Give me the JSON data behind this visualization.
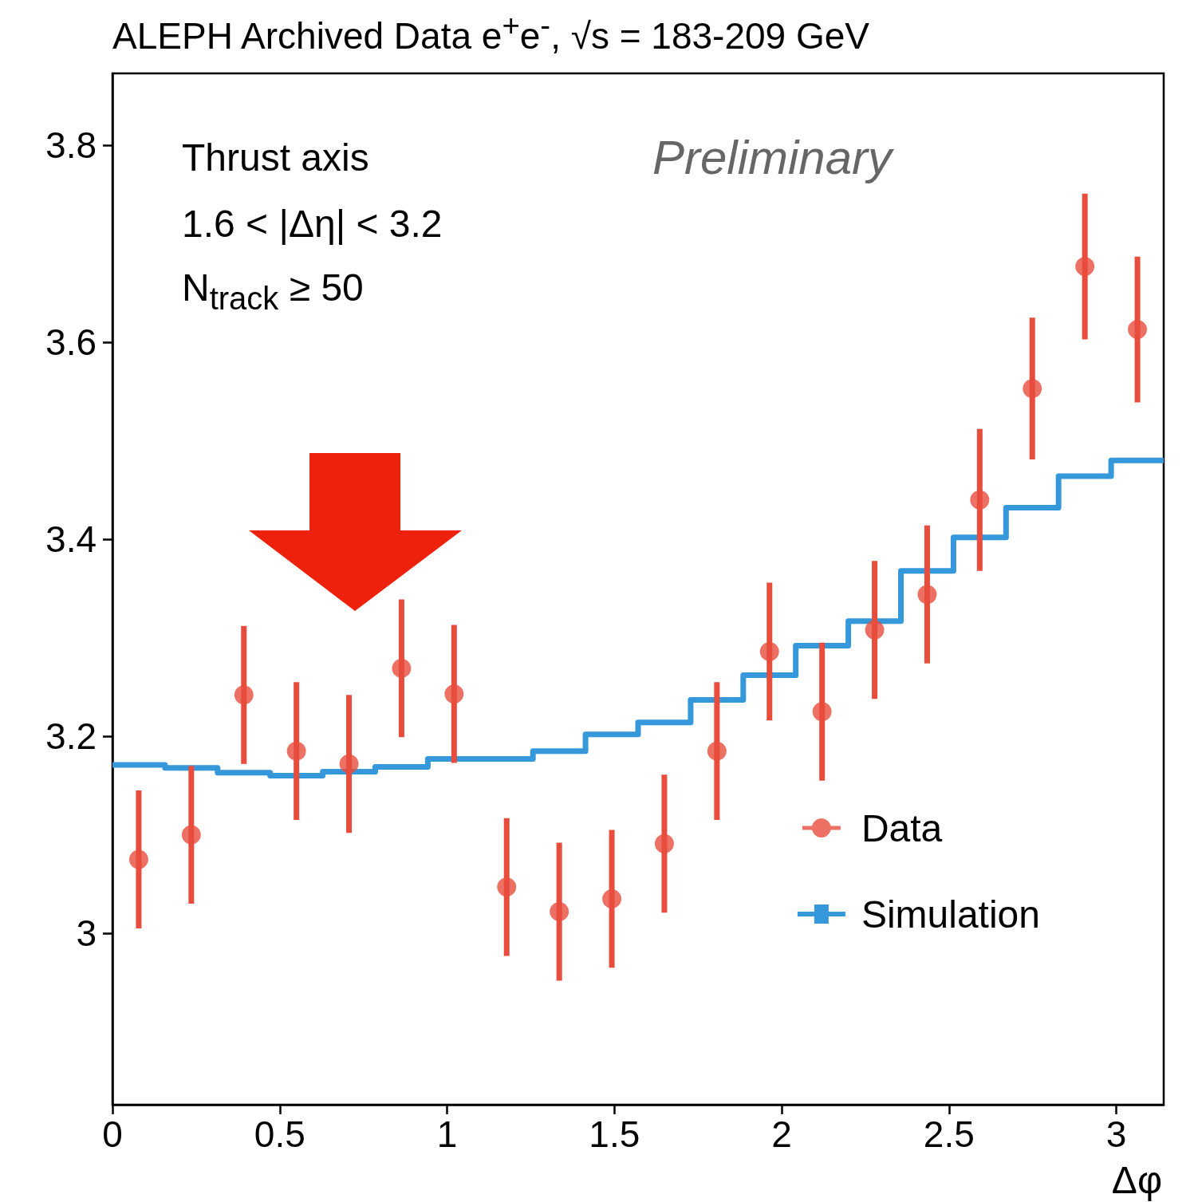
{
  "chart_data": {
    "type": "scatter",
    "title": "ALEPH Archived Data e$^{+}$e$^{-}$, √s = 183-209 GeV",
    "xlabel": "Δφ",
    "annotations": [
      "Thrust axis",
      "1.6 < |Δη| < 3.2",
      "N$_{track}$ ≥ 50",
      "Preliminary"
    ],
    "x": [
      0.0785,
      0.2356,
      0.3927,
      0.5498,
      0.7069,
      0.8639,
      1.021,
      1.1781,
      1.3352,
      1.4923,
      1.6493,
      1.8064,
      1.9635,
      2.1206,
      2.2777,
      2.4347,
      2.5918,
      2.7489,
      2.906,
      3.0631
    ],
    "series": [
      {
        "name": "Data",
        "marker": "circle",
        "color": "#e74c3c",
        "values": [
          3.075,
          3.1,
          3.242,
          3.185,
          3.172,
          3.269,
          3.243,
          3.047,
          3.022,
          3.035,
          3.091,
          3.185,
          3.286,
          3.225,
          3.308,
          3.344,
          3.44,
          3.553,
          3.677,
          3.613
        ],
        "errors": [
          0.07,
          0.07,
          0.07,
          0.07,
          0.07,
          0.07,
          0.07,
          0.07,
          0.07,
          0.07,
          0.07,
          0.07,
          0.07,
          0.07,
          0.07,
          0.07,
          0.072,
          0.072,
          0.074,
          0.074
        ]
      },
      {
        "name": "Simulation",
        "type": "histogram",
        "color": "#3498db",
        "bins": [
          0,
          0.1571,
          0.3142,
          0.4712,
          0.6283,
          0.7854,
          0.9425,
          1.0996,
          1.2566,
          1.4137,
          1.5708,
          1.7279,
          1.885,
          2.042,
          2.1991,
          2.3562,
          2.5133,
          2.6704,
          2.8274,
          2.9845,
          3.1416
        ],
        "values": [
          3.171,
          3.168,
          3.163,
          3.16,
          3.164,
          3.169,
          3.177,
          3.177,
          3.185,
          3.202,
          3.214,
          3.237,
          3.262,
          3.292,
          3.317,
          3.368,
          3.402,
          3.432,
          3.464,
          3.48
        ]
      }
    ],
    "xlim": [
      0,
      3.1416
    ],
    "xticks": [
      0,
      0.5,
      1,
      1.5,
      2,
      2.5,
      3
    ],
    "ylim": [
      2.826,
      3.873
    ],
    "yticks": [
      3,
      3.2,
      3.4,
      3.6,
      3.8
    ],
    "legend": "bottom right"
  }
}
